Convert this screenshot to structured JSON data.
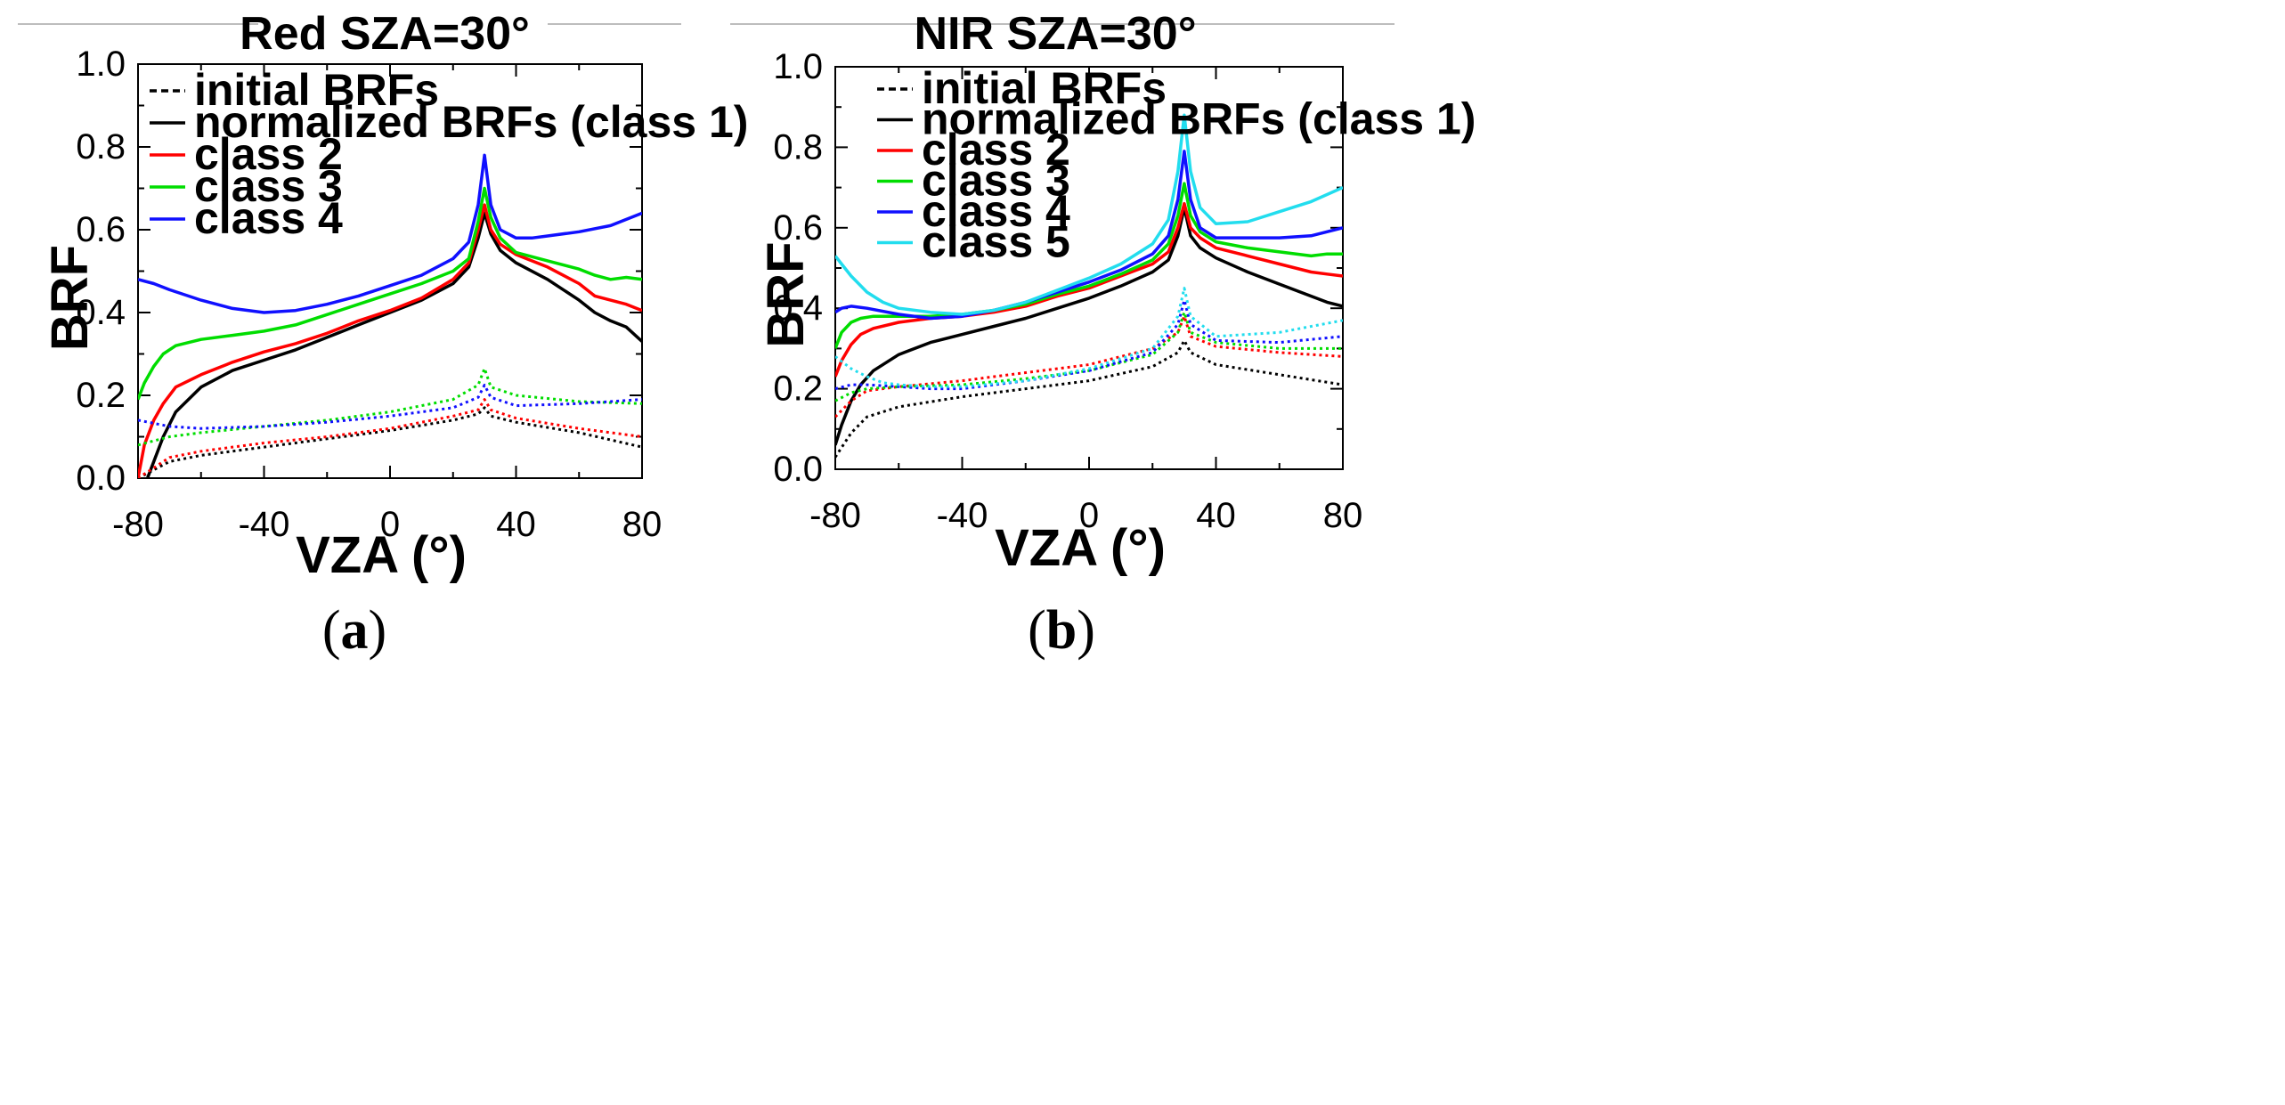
{
  "chart_data": [
    {
      "panel_label": "a",
      "type": "line",
      "title": "Red   SZA=30°",
      "xlabel": "VZA (°)",
      "ylabel": "BRF",
      "xlim": [
        -80,
        80
      ],
      "ylim": [
        0.0,
        1.0
      ],
      "xticks": [
        -80,
        -40,
        0,
        40,
        80
      ],
      "xtick_labels": [
        "-80",
        "-40",
        "0",
        "40",
        "80"
      ],
      "yticks": [
        0.0,
        0.2,
        0.4,
        0.6,
        0.8,
        1.0
      ],
      "ytick_labels": [
        "0.0",
        "0.2",
        "0.4",
        "0.6",
        "0.8",
        "1.0"
      ],
      "legend": [
        {
          "label": "initial BRFs",
          "color": "#000000",
          "dash": "dashed"
        },
        {
          "label": "normalized BRFs (class 1)",
          "color": "#000000",
          "dash": "solid"
        },
        {
          "label": "class 2",
          "color": "#ff0000",
          "dash": "solid"
        },
        {
          "label": "class 3",
          "color": "#00dd00",
          "dash": "solid"
        },
        {
          "label": "class 4",
          "color": "#1010ff",
          "dash": "solid"
        }
      ],
      "series": [
        {
          "name": "normalized class 1",
          "color": "#000000",
          "dash": "solid",
          "x": [
            -77,
            -75,
            -72,
            -68,
            -60,
            -50,
            -40,
            -30,
            -20,
            -10,
            0,
            10,
            20,
            25,
            28,
            30,
            32,
            35,
            40,
            50,
            60,
            65,
            70,
            75,
            80
          ],
          "y": [
            0.0,
            0.04,
            0.1,
            0.16,
            0.22,
            0.26,
            0.285,
            0.31,
            0.34,
            0.37,
            0.4,
            0.43,
            0.47,
            0.51,
            0.58,
            0.64,
            0.59,
            0.55,
            0.52,
            0.48,
            0.43,
            0.4,
            0.38,
            0.365,
            0.33
          ]
        },
        {
          "name": "normalized class 2",
          "color": "#ff0000",
          "dash": "solid",
          "x": [
            -80,
            -78,
            -75,
            -72,
            -68,
            -60,
            -50,
            -40,
            -30,
            -20,
            -10,
            0,
            10,
            20,
            25,
            28,
            30,
            32,
            35,
            40,
            50,
            60,
            65,
            70,
            75,
            80
          ],
          "y": [
            0.0,
            0.08,
            0.14,
            0.18,
            0.22,
            0.25,
            0.28,
            0.305,
            0.325,
            0.35,
            0.38,
            0.405,
            0.435,
            0.48,
            0.52,
            0.6,
            0.66,
            0.6,
            0.565,
            0.54,
            0.51,
            0.47,
            0.44,
            0.43,
            0.42,
            0.405
          ]
        },
        {
          "name": "normalized class 3",
          "color": "#00dd00",
          "dash": "solid",
          "x": [
            -80,
            -78,
            -75,
            -72,
            -68,
            -60,
            -50,
            -40,
            -30,
            -20,
            -10,
            0,
            10,
            20,
            25,
            28,
            30,
            32,
            35,
            40,
            50,
            60,
            65,
            70,
            75,
            80
          ],
          "y": [
            0.19,
            0.23,
            0.27,
            0.3,
            0.32,
            0.335,
            0.345,
            0.355,
            0.37,
            0.395,
            0.42,
            0.445,
            0.47,
            0.5,
            0.53,
            0.62,
            0.7,
            0.63,
            0.58,
            0.545,
            0.525,
            0.505,
            0.49,
            0.48,
            0.485,
            0.48
          ]
        },
        {
          "name": "normalized class 4",
          "color": "#1010ff",
          "dash": "solid",
          "x": [
            -80,
            -75,
            -70,
            -60,
            -50,
            -40,
            -30,
            -20,
            -10,
            0,
            10,
            20,
            25,
            28,
            30,
            32,
            35,
            40,
            45,
            50,
            60,
            70,
            80
          ],
          "y": [
            0.48,
            0.47,
            0.455,
            0.43,
            0.41,
            0.4,
            0.405,
            0.42,
            0.44,
            0.465,
            0.49,
            0.53,
            0.57,
            0.66,
            0.78,
            0.66,
            0.6,
            0.58,
            0.58,
            0.585,
            0.595,
            0.61,
            0.64
          ]
        },
        {
          "name": "initial class 1",
          "color": "#000000",
          "dash": "dashed",
          "x": [
            -80,
            -70,
            -60,
            -40,
            -20,
            0,
            20,
            28,
            30,
            32,
            40,
            60,
            80
          ],
          "y": [
            0.0,
            0.04,
            0.055,
            0.075,
            0.095,
            0.115,
            0.14,
            0.155,
            0.17,
            0.15,
            0.135,
            0.11,
            0.075
          ]
        },
        {
          "name": "initial class 2",
          "color": "#ff0000",
          "dash": "dashed",
          "x": [
            -80,
            -70,
            -60,
            -40,
            -20,
            0,
            20,
            28,
            30,
            32,
            40,
            60,
            80
          ],
          "y": [
            0.0,
            0.05,
            0.065,
            0.085,
            0.1,
            0.12,
            0.15,
            0.165,
            0.19,
            0.165,
            0.145,
            0.12,
            0.1
          ]
        },
        {
          "name": "initial class 3",
          "color": "#00dd00",
          "dash": "dashed",
          "x": [
            -80,
            -75,
            -70,
            -60,
            -40,
            -20,
            0,
            20,
            28,
            30,
            32,
            40,
            60,
            80
          ],
          "y": [
            0.08,
            0.09,
            0.1,
            0.11,
            0.125,
            0.14,
            0.16,
            0.19,
            0.225,
            0.265,
            0.22,
            0.2,
            0.185,
            0.18
          ]
        },
        {
          "name": "initial class 4",
          "color": "#1010ff",
          "dash": "dashed",
          "x": [
            -80,
            -70,
            -60,
            -40,
            -20,
            0,
            20,
            28,
            30,
            32,
            40,
            60,
            80
          ],
          "y": [
            0.14,
            0.125,
            0.12,
            0.125,
            0.135,
            0.15,
            0.17,
            0.195,
            0.225,
            0.195,
            0.175,
            0.18,
            0.19
          ]
        }
      ]
    },
    {
      "panel_label": "b",
      "type": "line",
      "title": "NIR   SZA=30°",
      "xlabel": "VZA (°)",
      "ylabel": "BRF",
      "xlim": [
        -80,
        80
      ],
      "ylim": [
        0.0,
        1.0
      ],
      "xticks": [
        -80,
        -40,
        0,
        40,
        80
      ],
      "xtick_labels": [
        "-80",
        "-40",
        "0",
        "40",
        "80"
      ],
      "yticks": [
        0.0,
        0.2,
        0.4,
        0.6,
        0.8,
        1.0
      ],
      "ytick_labels": [
        "0.0",
        "0.2",
        "0.4",
        "0.6",
        "0.8",
        "1.0"
      ],
      "legend": [
        {
          "label": "initial BRFs",
          "color": "#000000",
          "dash": "dashed"
        },
        {
          "label": "normalized BRFs (class 1)",
          "color": "#000000",
          "dash": "solid"
        },
        {
          "label": "class 2",
          "color": "#ff0000",
          "dash": "solid"
        },
        {
          "label": "class 3",
          "color": "#00dd00",
          "dash": "solid"
        },
        {
          "label": "class 4",
          "color": "#1010ff",
          "dash": "solid"
        },
        {
          "label": "class 5",
          "color": "#22ddee",
          "dash": "solid"
        }
      ],
      "series": [
        {
          "name": "normalized class 1",
          "color": "#000000",
          "dash": "solid",
          "x": [
            -80,
            -78,
            -75,
            -72,
            -68,
            -60,
            -50,
            -40,
            -30,
            -20,
            -10,
            0,
            10,
            20,
            25,
            28,
            30,
            32,
            35,
            40,
            50,
            60,
            70,
            75,
            80
          ],
          "y": [
            0.06,
            0.11,
            0.17,
            0.21,
            0.245,
            0.285,
            0.315,
            0.335,
            0.355,
            0.375,
            0.4,
            0.425,
            0.455,
            0.49,
            0.52,
            0.58,
            0.65,
            0.58,
            0.55,
            0.525,
            0.49,
            0.46,
            0.43,
            0.415,
            0.405
          ]
        },
        {
          "name": "normalized class 2",
          "color": "#ff0000",
          "dash": "solid",
          "x": [
            -80,
            -78,
            -75,
            -72,
            -68,
            -60,
            -50,
            -40,
            -30,
            -20,
            -10,
            0,
            10,
            20,
            25,
            28,
            30,
            32,
            35,
            40,
            50,
            60,
            70,
            75,
            80
          ],
          "y": [
            0.23,
            0.27,
            0.31,
            0.335,
            0.35,
            0.365,
            0.375,
            0.38,
            0.39,
            0.405,
            0.43,
            0.45,
            0.48,
            0.51,
            0.54,
            0.6,
            0.66,
            0.6,
            0.575,
            0.55,
            0.53,
            0.51,
            0.49,
            0.485,
            0.48
          ]
        },
        {
          "name": "normalized class 3",
          "color": "#00dd00",
          "dash": "solid",
          "x": [
            -80,
            -78,
            -75,
            -72,
            -68,
            -60,
            -50,
            -40,
            -30,
            -20,
            -10,
            0,
            10,
            20,
            25,
            28,
            30,
            32,
            35,
            40,
            50,
            60,
            70,
            75,
            80
          ],
          "y": [
            0.3,
            0.34,
            0.365,
            0.375,
            0.38,
            0.38,
            0.38,
            0.385,
            0.395,
            0.41,
            0.435,
            0.455,
            0.485,
            0.52,
            0.56,
            0.63,
            0.71,
            0.63,
            0.59,
            0.565,
            0.55,
            0.54,
            0.53,
            0.535,
            0.535
          ]
        },
        {
          "name": "normalized class 4",
          "color": "#1010ff",
          "dash": "solid",
          "x": [
            -80,
            -78,
            -75,
            -70,
            -60,
            -50,
            -40,
            -30,
            -20,
            -10,
            0,
            10,
            20,
            25,
            28,
            30,
            32,
            35,
            40,
            50,
            60,
            70,
            75,
            80
          ],
          "y": [
            0.39,
            0.4,
            0.405,
            0.4,
            0.385,
            0.375,
            0.38,
            0.395,
            0.415,
            0.44,
            0.465,
            0.495,
            0.535,
            0.58,
            0.67,
            0.79,
            0.67,
            0.6,
            0.575,
            0.575,
            0.575,
            0.58,
            0.59,
            0.6
          ]
        },
        {
          "name": "normalized class 5",
          "color": "#22ddee",
          "dash": "solid",
          "x": [
            -80,
            -78,
            -75,
            -70,
            -65,
            -60,
            -50,
            -40,
            -30,
            -20,
            -10,
            0,
            10,
            20,
            25,
            28,
            30,
            32,
            35,
            40,
            50,
            60,
            70,
            80
          ],
          "y": [
            0.53,
            0.51,
            0.48,
            0.44,
            0.415,
            0.4,
            0.39,
            0.385,
            0.395,
            0.415,
            0.445,
            0.475,
            0.51,
            0.56,
            0.62,
            0.74,
            0.88,
            0.74,
            0.65,
            0.61,
            0.615,
            0.64,
            0.665,
            0.7
          ]
        },
        {
          "name": "initial class 1",
          "color": "#000000",
          "dash": "dashed",
          "x": [
            -80,
            -75,
            -70,
            -60,
            -40,
            -20,
            0,
            20,
            28,
            30,
            32,
            40,
            60,
            80
          ],
          "y": [
            0.03,
            0.09,
            0.13,
            0.155,
            0.18,
            0.2,
            0.22,
            0.255,
            0.29,
            0.32,
            0.29,
            0.26,
            0.235,
            0.21
          ]
        },
        {
          "name": "initial class 2",
          "color": "#ff0000",
          "dash": "dashed",
          "x": [
            -80,
            -75,
            -70,
            -60,
            -40,
            -20,
            0,
            20,
            28,
            30,
            32,
            40,
            60,
            80
          ],
          "y": [
            0.13,
            0.17,
            0.195,
            0.205,
            0.22,
            0.24,
            0.26,
            0.3,
            0.34,
            0.38,
            0.33,
            0.305,
            0.29,
            0.28
          ]
        },
        {
          "name": "initial class 3",
          "color": "#00dd00",
          "dash": "dashed",
          "x": [
            -80,
            -75,
            -70,
            -60,
            -40,
            -20,
            0,
            20,
            28,
            30,
            32,
            40,
            60,
            80
          ],
          "y": [
            0.17,
            0.19,
            0.2,
            0.205,
            0.21,
            0.225,
            0.245,
            0.285,
            0.34,
            0.39,
            0.34,
            0.315,
            0.3,
            0.3
          ]
        },
        {
          "name": "initial class 4",
          "color": "#1010ff",
          "dash": "dashed",
          "x": [
            -80,
            -75,
            -70,
            -60,
            -50,
            -40,
            -20,
            0,
            20,
            28,
            30,
            32,
            40,
            60,
            80
          ],
          "y": [
            0.2,
            0.21,
            0.21,
            0.205,
            0.2,
            0.2,
            0.22,
            0.245,
            0.29,
            0.36,
            0.42,
            0.36,
            0.32,
            0.315,
            0.33
          ]
        },
        {
          "name": "initial class 5",
          "color": "#22ddee",
          "dash": "dashed",
          "x": [
            -80,
            -75,
            -70,
            -65,
            -60,
            -50,
            -40,
            -20,
            0,
            20,
            28,
            30,
            32,
            40,
            60,
            80
          ],
          "y": [
            0.28,
            0.25,
            0.23,
            0.215,
            0.21,
            0.205,
            0.205,
            0.22,
            0.25,
            0.3,
            0.38,
            0.45,
            0.38,
            0.33,
            0.34,
            0.37
          ]
        }
      ]
    }
  ]
}
